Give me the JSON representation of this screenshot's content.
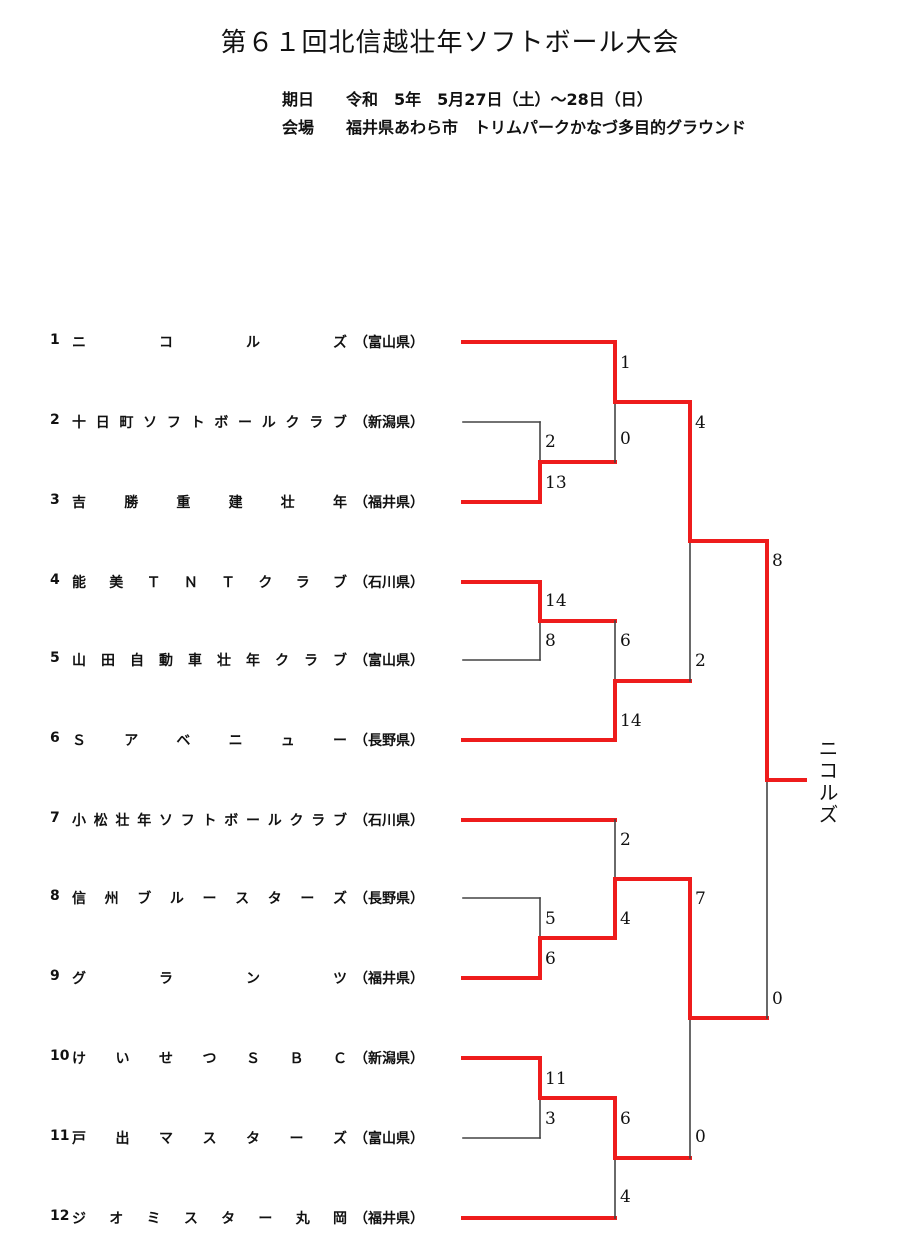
{
  "title": "第６１回北信越壮年ソフトボール大会",
  "info": {
    "date_label": "期日",
    "date_value": "令和　5年　5月27日（土）～28日（日）",
    "venue_label": "会場",
    "venue_value": "福井県あわら市　トリムパークかなづ多目的グラウンド"
  },
  "teams": [
    {
      "num": "1",
      "name": "ニコルズ",
      "pref": "（富山県）"
    },
    {
      "num": "2",
      "name": "十日町ソフトボールクラブ",
      "pref": "（新潟県）"
    },
    {
      "num": "3",
      "name": "吉勝重建壮年",
      "pref": "（福井県）"
    },
    {
      "num": "4",
      "name": "能美ＴＮＴクラブ",
      "pref": "（石川県）"
    },
    {
      "num": "5",
      "name": "山田自動車壮年クラブ",
      "pref": "（富山県）"
    },
    {
      "num": "6",
      "name": "Ｓアベニュー",
      "pref": "（長野県）"
    },
    {
      "num": "7",
      "name": "小松壮年ソフトボールクラブ",
      "pref": "（石川県）"
    },
    {
      "num": "8",
      "name": "信州ブルースターズ",
      "pref": "（長野県）"
    },
    {
      "num": "9",
      "name": "グランツ",
      "pref": "（福井県）"
    },
    {
      "num": "10",
      "name": "けいせつＳＢＣ",
      "pref": "（新潟県）"
    },
    {
      "num": "11",
      "name": "戸出マスターズ",
      "pref": "（富山県）"
    },
    {
      "num": "12",
      "name": "ジオミスター丸岡",
      "pref": "（福井県）"
    }
  ],
  "scores": {
    "r1_2v3_top": "2",
    "r1_2v3_bot": "13",
    "r1_4v5_top": "14",
    "r1_4v5_bot": "8",
    "r1_8v9_top": "5",
    "r1_8v9_bot": "6",
    "r1_10v11_top": "11",
    "r1_10v11_bot": "3",
    "r2_1_top": "1",
    "r2_1_bot": "0",
    "r2_2_top": "6",
    "r2_2_bot": "14",
    "r2_3_top": "2",
    "r2_3_bot": "4",
    "r2_4_top": "6",
    "r2_4_bot": "4",
    "sf_1_top": "4",
    "sf_1_bot": "2",
    "sf_2_top": "7",
    "sf_2_bot": "0",
    "final_top": "8",
    "final_bot": "0"
  },
  "winner": "ニコルズ",
  "colors": {
    "win": "#ee1c1c",
    "lose": "#444444"
  }
}
